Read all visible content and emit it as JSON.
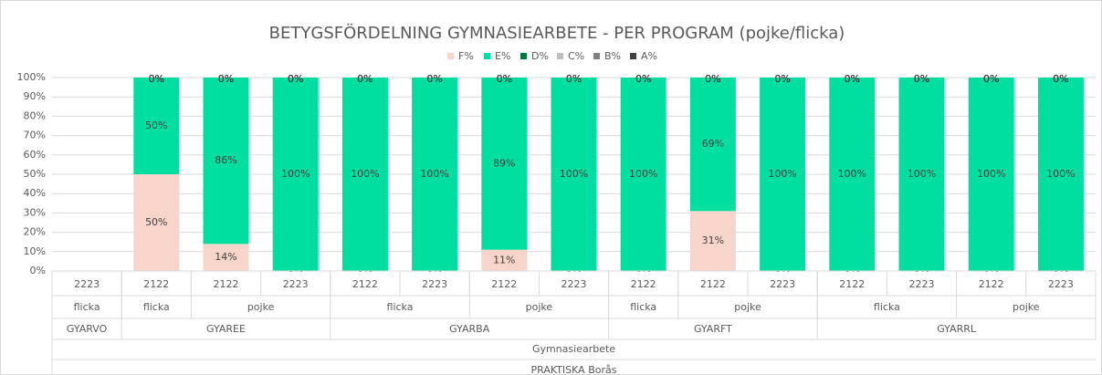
{
  "chart_data": {
    "type": "stacked_bar",
    "title": "BETYGSFÖRDELNING GYMNASIEARBETE - PER PROGRAM (pojke/flicka)",
    "categories": [
      "2223",
      "2122",
      "2122",
      "2223",
      "2122",
      "2223",
      "2122",
      "2223",
      "2122",
      "2122",
      "2223",
      "2122",
      "2223",
      "2122",
      "2223"
    ],
    "category_level2": [
      "flicka",
      "flicka",
      "pojke",
      null,
      "flicka",
      null,
      "pojke",
      null,
      "flicka",
      "pojke",
      null,
      "flicka",
      null,
      "pojke",
      null
    ],
    "category_level3": [
      "GYARVO",
      "GYAREE",
      null,
      null,
      "GYARBA",
      null,
      null,
      null,
      "GYARFT",
      null,
      null,
      "GYARRL",
      null,
      null,
      null
    ],
    "category_level4": "Gymnasiearbete",
    "category_level5": "PRAKTISKA Borås",
    "series": [
      {
        "name": "F%",
        "color": "#f8d5cb",
        "values": [
          null,
          50,
          14,
          0,
          0,
          0,
          11,
          0,
          0,
          31,
          0,
          0,
          0,
          0,
          0
        ],
        "value_labels": [
          null,
          "50%",
          "14%",
          "0%",
          "0%",
          "0%",
          "11%",
          "0%",
          "0%",
          "31%",
          "0%",
          "0%",
          "0%",
          "0%",
          "0%"
        ]
      },
      {
        "name": "E%",
        "color": "#00df9f",
        "values": [
          null,
          50,
          86,
          100,
          100,
          100,
          89,
          100,
          100,
          69,
          100,
          100,
          100,
          100,
          100
        ],
        "value_labels": [
          null,
          "50%",
          "86%",
          "100%",
          "100%",
          "100%",
          "89%",
          "100%",
          "100%",
          "69%",
          "100%",
          "100%",
          "100%",
          "100%",
          "100%"
        ]
      },
      {
        "name": "D%",
        "color": "#00793d",
        "values": [
          null,
          0,
          0,
          0,
          0,
          0,
          0,
          0,
          0,
          0,
          0,
          0,
          0,
          0,
          0
        ],
        "value_labels": [
          null,
          "0%",
          "0%",
          "0%",
          "0%",
          "0%",
          "0%",
          "0%",
          "0%",
          "0%",
          "0%",
          "0%",
          "0%",
          "0%",
          "0%"
        ]
      },
      {
        "name": "C%",
        "color": "#bfbfbf",
        "values": [
          null,
          0,
          0,
          0,
          0,
          0,
          0,
          0,
          0,
          0,
          0,
          0,
          0,
          0,
          0
        ],
        "value_labels": [
          null,
          "0%",
          "0%",
          "0%",
          "0%",
          "0%",
          "0%",
          "0%",
          "0%",
          "0%",
          "0%",
          "0%",
          "0%",
          "0%",
          "0%"
        ]
      },
      {
        "name": "B%",
        "color": "#808080",
        "values": [
          null,
          0,
          0,
          0,
          0,
          0,
          0,
          0,
          0,
          0,
          0,
          0,
          0,
          0,
          0
        ],
        "value_labels": [
          null,
          "0%",
          "0%",
          "0%",
          "0%",
          "0%",
          "0%",
          "0%",
          "0%",
          "0%",
          "0%",
          "0%",
          "0%",
          "0%",
          "0%"
        ]
      },
      {
        "name": "A%",
        "color": "#404040",
        "values": [
          null,
          0,
          0,
          0,
          0,
          0,
          0,
          0,
          0,
          0,
          0,
          0,
          0,
          0,
          0
        ],
        "value_labels": [
          null,
          "0%",
          "0%",
          "0%",
          "0%",
          "0%",
          "0%",
          "0%",
          "0%",
          "0%",
          "0%",
          "0%",
          "0%",
          "0%",
          "0%"
        ]
      }
    ],
    "ylim": [
      0,
      100
    ],
    "yticks": [
      {
        "value": 0,
        "label": "0%"
      },
      {
        "value": 10,
        "label": "10%"
      },
      {
        "value": 20,
        "label": "20%"
      },
      {
        "value": 30,
        "label": "30%"
      },
      {
        "value": 40,
        "label": "40%"
      },
      {
        "value": 50,
        "label": "50%"
      },
      {
        "value": 60,
        "label": "60%"
      },
      {
        "value": 70,
        "label": "70%"
      },
      {
        "value": 80,
        "label": "80%"
      },
      {
        "value": 90,
        "label": "90%"
      },
      {
        "value": 100,
        "label": "100%"
      }
    ],
    "grid": true,
    "legend": "top"
  }
}
